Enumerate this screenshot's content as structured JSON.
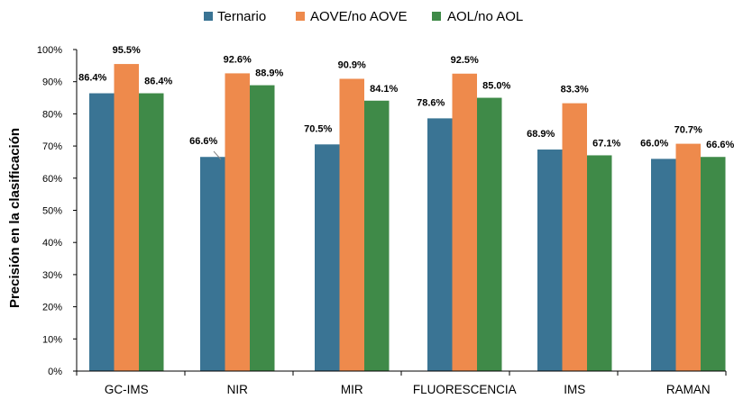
{
  "chart_data": {
    "type": "bar",
    "ylabel": "Precisión en la clasificación",
    "xlabel": "",
    "ylim": [
      0,
      100
    ],
    "yticks": [
      "0%",
      "10%",
      "20%",
      "30%",
      "40%",
      "50%",
      "60%",
      "70%",
      "80%",
      "90%",
      "100%"
    ],
    "categories": [
      "GC-IMS",
      "NIR",
      "MIR",
      "FLUORESCENCIA",
      "IMS",
      "RAMAN"
    ],
    "series": [
      {
        "name": "Ternario",
        "color": "#3a7494",
        "values": [
          86.4,
          66.6,
          70.5,
          78.6,
          68.9,
          66.0
        ],
        "labels": [
          "86.4%",
          "66.6%",
          "70.5%",
          "78.6%",
          "68.9%",
          "66.0%"
        ]
      },
      {
        "name": "AOVE/no AOVE",
        "color": "#ee8a4c",
        "values": [
          95.5,
          92.6,
          90.9,
          92.5,
          83.3,
          70.7
        ],
        "labels": [
          "95.5%",
          "92.6%",
          "90.9%",
          "92.5%",
          "83.3%",
          "70.7%"
        ]
      },
      {
        "name": "AOL/no AOL",
        "color": "#3f8a48",
        "values": [
          86.4,
          88.9,
          84.1,
          85.0,
          67.1,
          66.6
        ],
        "labels": [
          "86.4%",
          "88.9%",
          "84.1%",
          "85.0%",
          "67.1%",
          "66.6%"
        ]
      }
    ],
    "grid": false,
    "legend": "top-center"
  }
}
